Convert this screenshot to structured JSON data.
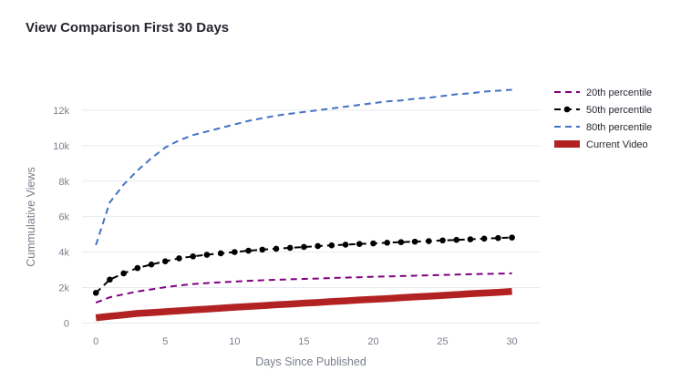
{
  "chart_data": {
    "type": "line",
    "title": "View Comparison First 30 Days",
    "xlabel": "Days Since Published",
    "ylabel": "Cummulative Views",
    "xlim": [
      -1,
      32
    ],
    "ylim": [
      -800,
      14000
    ],
    "x_ticks": [
      0,
      5,
      10,
      15,
      20,
      25,
      30
    ],
    "y_ticks": [
      0,
      2000,
      4000,
      6000,
      8000,
      10000,
      12000
    ],
    "y_tick_labels": [
      "0",
      "2k",
      "4k",
      "6k",
      "8k",
      "10k",
      "12k"
    ],
    "grid": true,
    "legend_position": "top-right",
    "series": [
      {
        "name": "20th percentile",
        "color": "#800080",
        "style": "dashed",
        "x": [
          0,
          1,
          2,
          3,
          4,
          5,
          6,
          7,
          8,
          9,
          10,
          11,
          12,
          13,
          14,
          15,
          16,
          17,
          18,
          19,
          20,
          21,
          22,
          23,
          24,
          25,
          26,
          27,
          28,
          29,
          30
        ],
        "values": [
          1150,
          1450,
          1620,
          1780,
          1900,
          2020,
          2120,
          2200,
          2250,
          2300,
          2340,
          2380,
          2410,
          2440,
          2470,
          2490,
          2510,
          2540,
          2560,
          2580,
          2610,
          2630,
          2650,
          2670,
          2690,
          2710,
          2730,
          2750,
          2770,
          2780,
          2800
        ]
      },
      {
        "name": "50th percentile",
        "color": "#000000",
        "style": "dashed-markers",
        "x": [
          0,
          1,
          2,
          3,
          4,
          5,
          6,
          7,
          8,
          9,
          10,
          11,
          12,
          13,
          14,
          15,
          16,
          17,
          18,
          19,
          20,
          21,
          22,
          23,
          24,
          25,
          26,
          27,
          28,
          29,
          30
        ],
        "values": [
          1700,
          2450,
          2800,
          3100,
          3300,
          3480,
          3650,
          3760,
          3850,
          3930,
          4000,
          4080,
          4140,
          4190,
          4240,
          4290,
          4340,
          4380,
          4420,
          4460,
          4490,
          4530,
          4560,
          4590,
          4620,
          4660,
          4690,
          4720,
          4760,
          4790,
          4820
        ]
      },
      {
        "name": "80th percentile",
        "color": "#4472c4",
        "style": "dashed",
        "x": [
          0,
          1,
          2,
          3,
          4,
          5,
          6,
          7,
          8,
          9,
          10,
          11,
          12,
          13,
          14,
          15,
          16,
          17,
          18,
          19,
          20,
          21,
          22,
          23,
          24,
          25,
          26,
          27,
          28,
          29,
          30
        ],
        "values": [
          4400,
          6800,
          7800,
          8600,
          9300,
          9900,
          10300,
          10600,
          10800,
          11000,
          11200,
          11400,
          11550,
          11700,
          11800,
          11900,
          12000,
          12100,
          12200,
          12300,
          12400,
          12500,
          12550,
          12650,
          12700,
          12800,
          12900,
          12950,
          13050,
          13100,
          13150
        ]
      },
      {
        "name": "Current Video",
        "color": "#b22222",
        "style": "solid-thick",
        "x": [
          0,
          1,
          2,
          3,
          4,
          5,
          6,
          7,
          8,
          9,
          10,
          11,
          12,
          13,
          14,
          15,
          16,
          17,
          18,
          19,
          20,
          21,
          22,
          23,
          24,
          25,
          26,
          27,
          28,
          29,
          30
        ],
        "values": [
          300,
          380,
          460,
          540,
          590,
          640,
          690,
          740,
          790,
          840,
          890,
          930,
          980,
          1030,
          1070,
          1120,
          1160,
          1210,
          1250,
          1300,
          1340,
          1380,
          1430,
          1470,
          1510,
          1560,
          1600,
          1650,
          1690,
          1730,
          1780
        ]
      }
    ]
  }
}
